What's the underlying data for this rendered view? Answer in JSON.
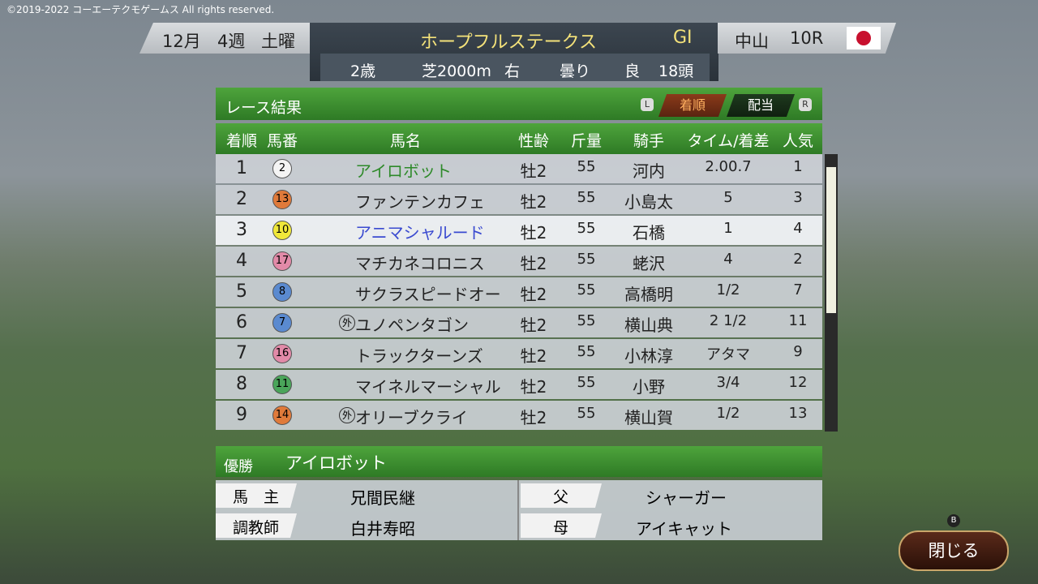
{
  "copyright": "©2019-2022 コーエーテクモゲームス All rights reserved.",
  "header": {
    "month": "12月",
    "week": "4週",
    "day": "土曜",
    "race_name": "ホープフルステークス",
    "grade": "GⅠ",
    "course": "中山",
    "race_no": "10R",
    "age": "2歳",
    "distance": "芝2000m",
    "direction": "右",
    "weather": "曇り",
    "track": "良",
    "runners": "18頭"
  },
  "panel": {
    "title": "レース結果",
    "tab_left": "L",
    "tabs": [
      "着順",
      "配当"
    ],
    "tab_right": "R"
  },
  "table": {
    "columns": [
      "着順",
      "馬番",
      "馬名",
      "性齢",
      "斤量",
      "騎手",
      "タイム/着差",
      "人気"
    ],
    "rows": [
      {
        "rank": 1,
        "number": 2,
        "color": "#f4f4f4",
        "name": "アイロボット",
        "sexage": "牡2",
        "weight": 55,
        "jockey": "河内",
        "margin": "2.00.7",
        "popularity": 1
      },
      {
        "rank": 2,
        "number": 13,
        "color": "#e07a3a",
        "name": "ファンテンカフェ",
        "sexage": "牡2",
        "weight": 55,
        "jockey": "小島太",
        "margin": "5",
        "popularity": 3
      },
      {
        "rank": 3,
        "number": 10,
        "color": "#f0e83a",
        "name": "アニマシャルード",
        "sexage": "牡2",
        "weight": 55,
        "jockey": "石橋",
        "margin": "1",
        "popularity": 4
      },
      {
        "rank": 4,
        "number": 17,
        "color": "#e28aa8",
        "name": "マチカネコロニス",
        "sexage": "牡2",
        "weight": 55,
        "jockey": "蛯沢",
        "margin": "4",
        "popularity": 2
      },
      {
        "rank": 5,
        "number": 8,
        "color": "#5a8ad0",
        "name": "サクラスピードオー",
        "sexage": "牡2",
        "weight": 55,
        "jockey": "高橋明",
        "margin": "1/2",
        "popularity": 7
      },
      {
        "rank": 6,
        "number": 7,
        "color": "#5a8ad0",
        "mark": "外",
        "name": "ユノペンタゴン",
        "sexage": "牡2",
        "weight": 55,
        "jockey": "横山典",
        "margin": "2 1/2",
        "popularity": 11
      },
      {
        "rank": 7,
        "number": 16,
        "color": "#e28aa8",
        "name": "トラックターンズ",
        "sexage": "牡2",
        "weight": 55,
        "jockey": "小林淳",
        "margin": "アタマ",
        "popularity": 9
      },
      {
        "rank": 8,
        "number": 11,
        "color": "#4aa55a",
        "name": "マイネルマーシャル",
        "sexage": "牡2",
        "weight": 55,
        "jockey": "小野",
        "margin": "3/4",
        "popularity": 12
      },
      {
        "rank": 9,
        "number": 14,
        "color": "#e07a3a",
        "mark": "外",
        "name": "オリーブクライ",
        "sexage": "牡2",
        "weight": 55,
        "jockey": "横山賀",
        "margin": "1/2",
        "popularity": 13
      }
    ]
  },
  "winner": {
    "label": "優勝",
    "name": "アイロボット",
    "owner_label": "馬　主",
    "owner": "兄間民継",
    "trainer_label": "調教師",
    "trainer": "白井寿昭",
    "sire_label": "父",
    "sire": "シャーガー",
    "dam_label": "母",
    "dam": "アイキャット"
  },
  "buttons": {
    "b": "B",
    "close": "閉じる"
  }
}
